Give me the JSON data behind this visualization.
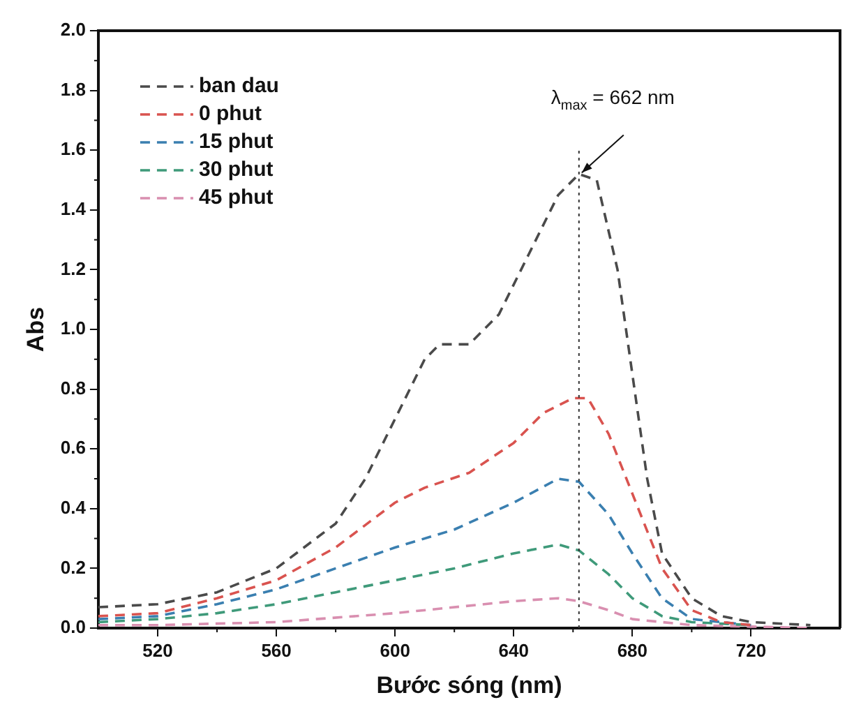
{
  "chart_data": {
    "type": "line",
    "xlabel": "Bước sóng (nm)",
    "ylabel": "Abs",
    "xlim": [
      500,
      750
    ],
    "xticks": [
      520,
      560,
      600,
      640,
      680,
      720
    ],
    "ylim": [
      0,
      2
    ],
    "yticks": [
      {
        "value": 0,
        "label": "0.0"
      },
      {
        "value": 0.2,
        "label": "0.2"
      },
      {
        "value": 0.4,
        "label": "0.4"
      },
      {
        "value": 0.6,
        "label": "0.6"
      },
      {
        "value": 0.8,
        "label": "0.8"
      },
      {
        "value": 1,
        "label": "1.0"
      },
      {
        "value": 1.2,
        "label": "1.2"
      },
      {
        "value": 1.4,
        "label": "1.4"
      },
      {
        "value": 1.6,
        "label": "1.6"
      },
      {
        "value": 1.8,
        "label": "1.8"
      },
      {
        "value": 2,
        "label": "2.0"
      }
    ],
    "grid": false,
    "legend": "top left",
    "line_style": "dashed",
    "marker": "none",
    "series": [
      {
        "name": "ban dau",
        "color": "#4a4a4a",
        "x": [
          500,
          520,
          540,
          560,
          580,
          590,
          600,
          610,
          615,
          625,
          635,
          645,
          655,
          662,
          668,
          675,
          680,
          685,
          690,
          700,
          710,
          720,
          740
        ],
        "values": [
          0.07,
          0.08,
          0.12,
          0.2,
          0.35,
          0.5,
          0.7,
          0.9,
          0.95,
          0.95,
          1.05,
          1.25,
          1.45,
          1.52,
          1.5,
          1.2,
          0.85,
          0.5,
          0.25,
          0.1,
          0.04,
          0.02,
          0.01
        ]
      },
      {
        "name": "0 phut",
        "color": "#d9534f",
        "x": [
          500,
          520,
          540,
          560,
          580,
          600,
          610,
          625,
          640,
          650,
          660,
          665,
          672,
          680,
          690,
          700,
          710,
          720
        ],
        "values": [
          0.04,
          0.05,
          0.1,
          0.16,
          0.27,
          0.42,
          0.47,
          0.52,
          0.62,
          0.72,
          0.77,
          0.77,
          0.65,
          0.45,
          0.2,
          0.06,
          0.02,
          0.01
        ]
      },
      {
        "name": "15 phut",
        "color": "#3a7fb0",
        "x": [
          500,
          520,
          540,
          560,
          580,
          600,
          620,
          640,
          655,
          662,
          672,
          680,
          690,
          700,
          720
        ],
        "values": [
          0.03,
          0.04,
          0.08,
          0.13,
          0.2,
          0.27,
          0.33,
          0.42,
          0.5,
          0.49,
          0.38,
          0.25,
          0.1,
          0.03,
          0.01
        ]
      },
      {
        "name": "30 phut",
        "color": "#3f9a7a",
        "x": [
          500,
          520,
          540,
          560,
          580,
          600,
          620,
          640,
          655,
          662,
          672,
          680,
          690,
          700,
          720
        ],
        "values": [
          0.02,
          0.03,
          0.05,
          0.08,
          0.12,
          0.16,
          0.2,
          0.25,
          0.28,
          0.26,
          0.18,
          0.1,
          0.04,
          0.02,
          0.01
        ]
      },
      {
        "name": "45 phut",
        "color": "#d98fb0",
        "x": [
          500,
          520,
          560,
          600,
          640,
          655,
          662,
          672,
          680,
          700,
          720,
          740
        ],
        "values": [
          0.01,
          0.01,
          0.02,
          0.05,
          0.09,
          0.1,
          0.09,
          0.06,
          0.03,
          0.01,
          0.005,
          0
        ]
      }
    ],
    "ref_lines": [
      {
        "axis": "x",
        "value": 662,
        "color": "#333333",
        "line_style": "dotted"
      }
    ],
    "annotations": [
      {
        "text": "λ$_{max}$ = 662 nm",
        "x": 662,
        "y": 1.52
      }
    ]
  }
}
